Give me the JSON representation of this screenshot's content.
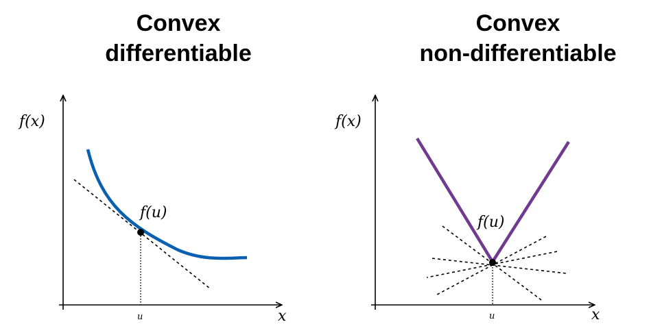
{
  "panels": [
    {
      "title_line1": "Convex",
      "title_line2": "differentiable",
      "y_label": "f(x)",
      "x_label": "x",
      "point_label": "f(u)",
      "tick_label": "u",
      "curve_color": "#0a5fb0"
    },
    {
      "title_line1": "Convex",
      "title_line2": "non-differentiable",
      "y_label": "f(x)",
      "x_label": "x",
      "point_label": "f(u)",
      "tick_label": "u",
      "curve_color": "#6f3a8f"
    }
  ]
}
